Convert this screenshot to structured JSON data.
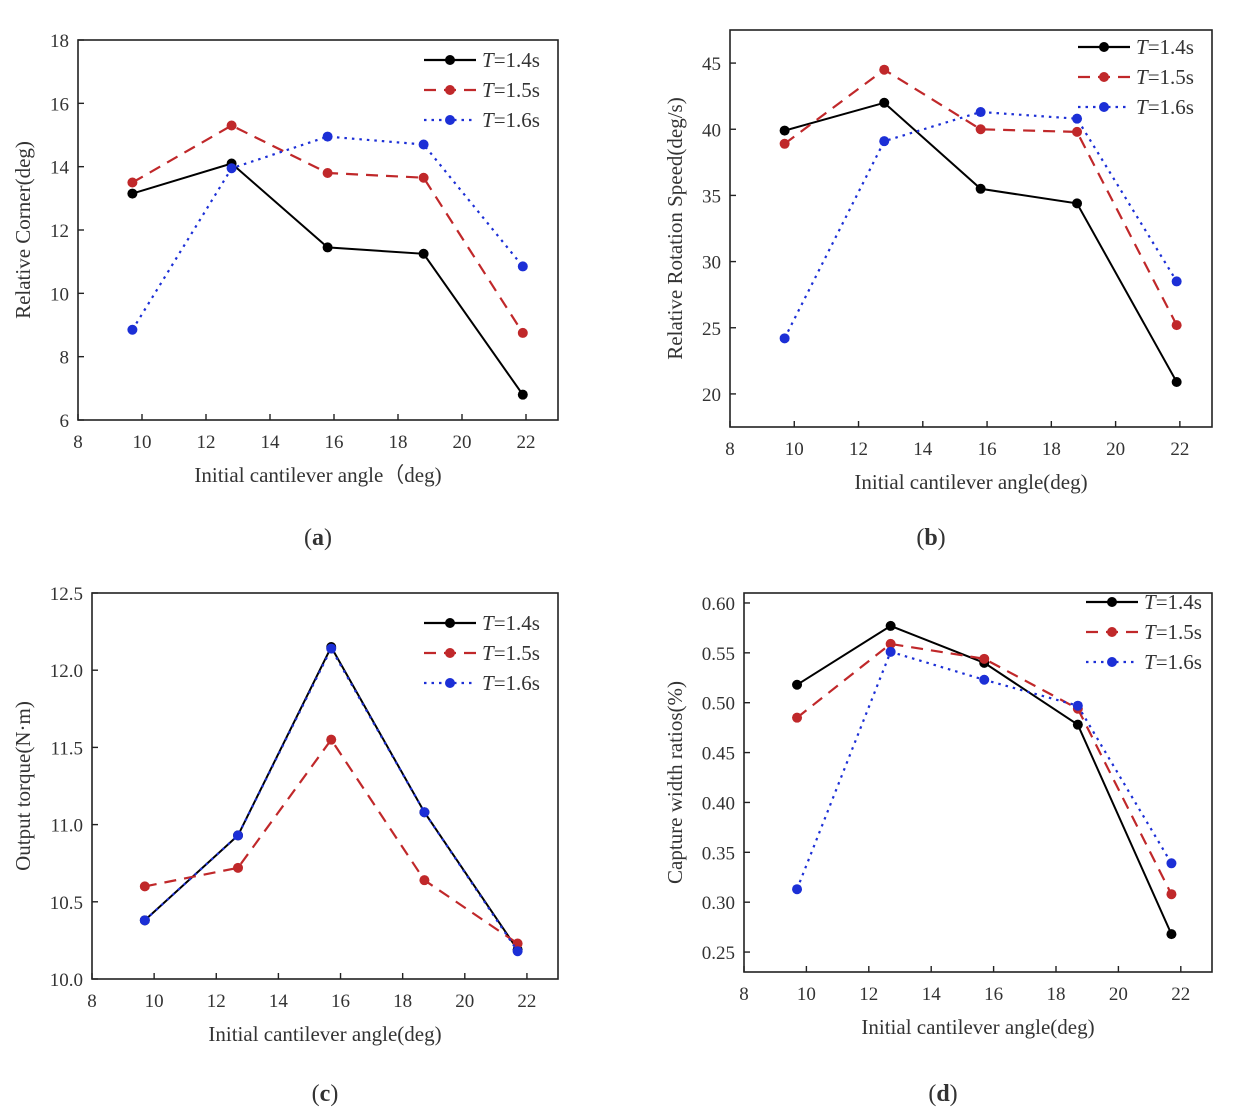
{
  "legend_entries": [
    {
      "italic": "T",
      "rest": "=1.4s"
    },
    {
      "italic": "T",
      "rest": "=1.5s"
    },
    {
      "italic": "T",
      "rest": "=1.6s"
    }
  ],
  "series_styles": [
    {
      "color": "#000000",
      "dash": "none"
    },
    {
      "color": "#c0282a",
      "dash": "dashed"
    },
    {
      "color": "#1c2fd6",
      "dash": "dotted"
    }
  ],
  "chart_data": [
    {
      "id": "a",
      "type": "line",
      "caption_open": "(",
      "caption_letter": "a",
      "caption_close": ")",
      "xlabel": "Initial cantilever angle（deg)",
      "ylabel": "Relative Corner(deg)",
      "xlim": [
        8,
        23
      ],
      "ylim": [
        6,
        18
      ],
      "xticks": [
        8,
        10,
        12,
        14,
        16,
        18,
        20,
        22
      ],
      "yticks": [
        6,
        8,
        10,
        12,
        14,
        16,
        18
      ],
      "legend_position": "top-right",
      "series": [
        {
          "name": "T=1.4s",
          "x": [
            9.7,
            12.8,
            15.8,
            18.8,
            21.9
          ],
          "y": [
            13.15,
            14.1,
            11.45,
            11.25,
            6.8
          ]
        },
        {
          "name": "T=1.5s",
          "x": [
            9.7,
            12.8,
            15.8,
            18.8,
            21.9
          ],
          "y": [
            13.5,
            15.3,
            13.8,
            13.65,
            8.75
          ]
        },
        {
          "name": "T=1.6s",
          "x": [
            9.7,
            12.8,
            15.8,
            18.8,
            21.9
          ],
          "y": [
            8.85,
            13.95,
            14.95,
            14.7,
            10.85
          ]
        }
      ]
    },
    {
      "id": "b",
      "type": "line",
      "caption_open": "(",
      "caption_letter": "b",
      "caption_close": ")",
      "xlabel": "Initial cantilever angle(deg)",
      "ylabel": "Relative Rotation Speed(deg/s)",
      "xlim": [
        8,
        23
      ],
      "ylim": [
        17.5,
        47.5
      ],
      "xticks": [
        8,
        10,
        12,
        14,
        16,
        18,
        20,
        22
      ],
      "yticks": [
        20,
        25,
        30,
        35,
        40,
        45
      ],
      "legend_position": "top-right",
      "series": [
        {
          "name": "T=1.4s",
          "x": [
            9.7,
            12.8,
            15.8,
            18.8,
            21.9
          ],
          "y": [
            39.9,
            42.0,
            35.5,
            34.4,
            20.9
          ]
        },
        {
          "name": "T=1.5s",
          "x": [
            9.7,
            12.8,
            15.8,
            18.8,
            21.9
          ],
          "y": [
            38.9,
            44.5,
            40.0,
            39.8,
            25.2
          ]
        },
        {
          "name": "T=1.6s",
          "x": [
            9.7,
            12.8,
            15.8,
            18.8,
            21.9
          ],
          "y": [
            24.2,
            39.1,
            41.3,
            40.8,
            28.5
          ]
        }
      ]
    },
    {
      "id": "c",
      "type": "line",
      "caption_open": "(",
      "caption_letter": "c",
      "caption_close": ")",
      "xlabel": "Initial cantilever angle(deg)",
      "ylabel": "Output torque(N·m)",
      "xlim": [
        8,
        23
      ],
      "ylim": [
        10.0,
        12.5
      ],
      "xticks": [
        8,
        10,
        12,
        14,
        16,
        18,
        20,
        22
      ],
      "yticks": [
        10.0,
        10.5,
        11.0,
        11.5,
        12.0,
        12.5
      ],
      "ytick_decimals": 1,
      "legend_position": "top-right",
      "series": [
        {
          "name": "T=1.4s",
          "x": [
            9.7,
            12.7,
            15.7,
            18.7,
            21.7
          ],
          "y": [
            10.38,
            10.93,
            12.15,
            11.08,
            10.19
          ]
        },
        {
          "name": "T=1.5s",
          "x": [
            9.7,
            12.7,
            15.7,
            18.7,
            21.7
          ],
          "y": [
            10.6,
            10.72,
            11.55,
            10.64,
            10.23
          ]
        },
        {
          "name": "T=1.6s",
          "x": [
            9.7,
            12.7,
            15.7,
            18.7,
            21.7
          ],
          "y": [
            10.38,
            10.93,
            12.14,
            11.08,
            10.18
          ]
        }
      ]
    },
    {
      "id": "d",
      "type": "line",
      "caption_open": "(",
      "caption_letter": "d",
      "caption_close": ")",
      "xlabel": "Initial cantilever angle(deg)",
      "ylabel": "Capture width ratios(%)",
      "xlim": [
        8,
        23
      ],
      "ylim": [
        0.23,
        0.61
      ],
      "xticks": [
        8,
        10,
        12,
        14,
        16,
        18,
        20,
        22
      ],
      "yticks": [
        0.25,
        0.3,
        0.35,
        0.4,
        0.45,
        0.5,
        0.55,
        0.6
      ],
      "ytick_decimals": 2,
      "legend_position": "top-right",
      "series": [
        {
          "name": "T=1.4s",
          "x": [
            9.7,
            12.7,
            15.7,
            18.7,
            21.7
          ],
          "y": [
            0.518,
            0.577,
            0.54,
            0.478,
            0.268
          ]
        },
        {
          "name": "T=1.5s",
          "x": [
            9.7,
            12.7,
            15.7,
            18.7,
            21.7
          ],
          "y": [
            0.485,
            0.559,
            0.544,
            0.494,
            0.308
          ]
        },
        {
          "name": "T=1.6s",
          "x": [
            9.7,
            12.7,
            15.7,
            18.7,
            21.7
          ],
          "y": [
            0.313,
            0.551,
            0.523,
            0.497,
            0.339
          ]
        }
      ]
    }
  ]
}
